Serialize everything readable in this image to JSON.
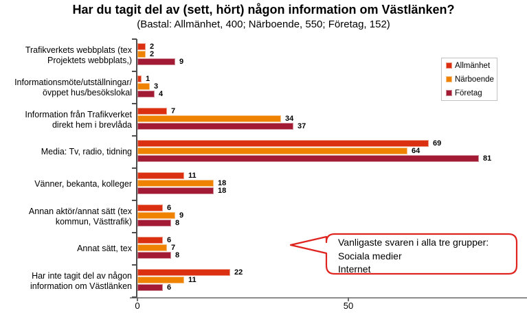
{
  "title": "Har du tagit del av (sett, hört) någon information om Västlänken?",
  "subtitle": "(Bastal: Allmänhet, 400; Närboende, 550; Företag, 152)",
  "chart_data": {
    "type": "bar",
    "orientation": "horizontal",
    "title": "Har du tagit del av (sett, hört) någon information om Västlänken?",
    "subtitle": "(Bastal: Allmänhet, 400; Närboende, 550; Företag, 152)",
    "categories": [
      "Trafikverkets webbplats (tex\nProjektets webbplats,)",
      "Informationsmöte/utställningar/\növppet hus/besökslokal",
      "Information från Trafikverket\ndirekt hem i brevlåda",
      "Media: Tv, radio, tidning",
      "Vänner, bekanta, kolleger",
      "Annan aktör/annat sätt (tex\nkommun, Västtrafik)",
      "Annat sätt, tex",
      "Har inte tagit del av någon\ninformation om Västlänken"
    ],
    "series": [
      {
        "name": "Allmänhet",
        "color": "#da2f10",
        "border_color": "#ed9b85",
        "values": [
          2,
          1,
          7,
          69,
          11,
          6,
          6,
          22
        ]
      },
      {
        "name": "Närboende",
        "color": "#ef8200",
        "border_color": "#f6c186",
        "values": [
          2,
          3,
          34,
          64,
          18,
          9,
          7,
          11
        ]
      },
      {
        "name": "Företag",
        "color": "#a21a33",
        "border_color": "#ce8f97",
        "values": [
          9,
          4,
          37,
          81,
          18,
          8,
          8,
          6
        ]
      }
    ],
    "xlim": [
      0,
      92
    ],
    "x_tick_values": [
      0,
      50
    ],
    "x_tick_labels": [
      "0",
      "50"
    ],
    "grid": false,
    "legend_position": "right"
  },
  "annotation": {
    "lines": [
      "Vanligaste svaren i alla tre grupper:",
      "Sociala medier",
      "Internet"
    ],
    "border_color": "#df231e"
  },
  "colors": {
    "y_axis": "#4d4d4d",
    "x_axis": "#8c8c8c",
    "legend_border": "#c0c0c0"
  }
}
